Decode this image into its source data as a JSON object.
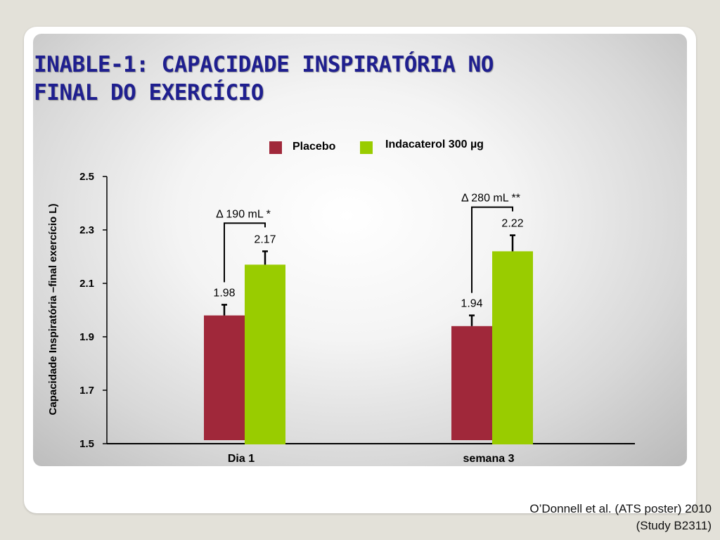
{
  "title_lines": [
    "INABLE-1: CAPACIDADE INSPIRATÓRIA NO",
    "FINAL DO EXERCÍCIO"
  ],
  "citation_lines": [
    "O’Donnell et al. (ATS poster) 2010",
    "(Study B2311)"
  ],
  "chart_data": {
    "type": "bar",
    "categories": [
      "Dia 1",
      "semana 3"
    ],
    "series": [
      {
        "name": "Placebo",
        "color": "#a0283a",
        "values": [
          1.98,
          1.94
        ],
        "errors": [
          0.04,
          0.04
        ]
      },
      {
        "name": "Indacaterol 300 µg",
        "color": "#99cc00",
        "values": [
          2.17,
          2.22
        ],
        "errors": [
          0.05,
          0.06
        ]
      }
    ],
    "data_labels": [
      [
        "1.98",
        "1.94"
      ],
      [
        "2.17",
        "2.22"
      ]
    ],
    "annotations": [
      "Δ 190 mL *",
      "Δ 280 mL **"
    ],
    "ylabel": "Capacidade Inspiratória –final exercício L)",
    "xlabel": "",
    "yticks": [
      "1.5",
      "1.7",
      "1.9",
      "2.1",
      "2.3",
      "2.5"
    ],
    "ylim": [
      1.5,
      2.5
    ],
    "legend": "top-center",
    "grid": false
  }
}
